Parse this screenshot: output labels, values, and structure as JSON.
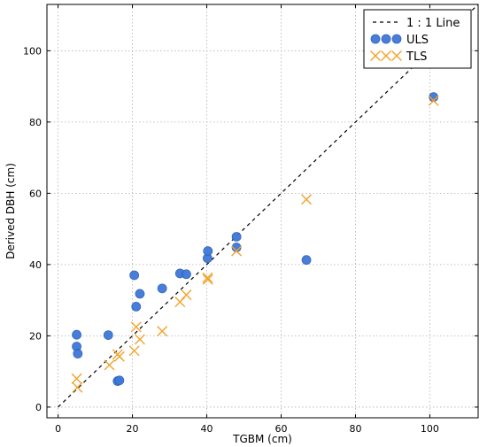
{
  "chart_data": {
    "type": "scatter",
    "xlabel": "TGBM (cm)",
    "ylabel": "Derived DBH (cm)",
    "xlim": [
      -3,
      113
    ],
    "ylim": [
      -3,
      113
    ],
    "x_ticks": [
      0,
      20,
      40,
      60,
      80,
      100
    ],
    "y_ticks": [
      0,
      20,
      40,
      60,
      80,
      100
    ],
    "grid": true,
    "legend_position": "top-right",
    "colors": {
      "uls": "#3f78d8",
      "tls": "#f2a32c",
      "line": "#000000"
    },
    "reference_line": {
      "name": "1 : 1 Line",
      "x": [
        0,
        113
      ],
      "y": [
        0,
        113
      ]
    },
    "series": [
      {
        "name": "ULS",
        "marker": "circle",
        "points": [
          [
            5,
            20.3
          ],
          [
            5,
            17
          ],
          [
            5.3,
            15
          ],
          [
            13.5,
            20.2
          ],
          [
            16,
            7.3
          ],
          [
            16.5,
            7.5
          ],
          [
            20.5,
            37
          ],
          [
            21,
            28.2
          ],
          [
            22,
            31.8
          ],
          [
            28,
            33.3
          ],
          [
            32.8,
            37.5
          ],
          [
            34.5,
            37.3
          ],
          [
            40.2,
            41.8
          ],
          [
            40.3,
            43.8
          ],
          [
            48,
            47.8
          ],
          [
            48,
            44.8
          ],
          [
            66.8,
            41.3
          ],
          [
            101,
            87
          ]
        ]
      },
      {
        "name": "TLS",
        "marker": "x",
        "points": [
          [
            5,
            8
          ],
          [
            5.2,
            5.5
          ],
          [
            13.8,
            11.8
          ],
          [
            16,
            14.8
          ],
          [
            16.5,
            14.2
          ],
          [
            20.5,
            15.8
          ],
          [
            21,
            22.5
          ],
          [
            22,
            19
          ],
          [
            28,
            21.3
          ],
          [
            32.8,
            29.5
          ],
          [
            34.5,
            31.5
          ],
          [
            40.2,
            36.3
          ],
          [
            40.3,
            35.8
          ],
          [
            48,
            43.8
          ],
          [
            66.8,
            58.3
          ],
          [
            101,
            86
          ]
        ]
      }
    ]
  }
}
